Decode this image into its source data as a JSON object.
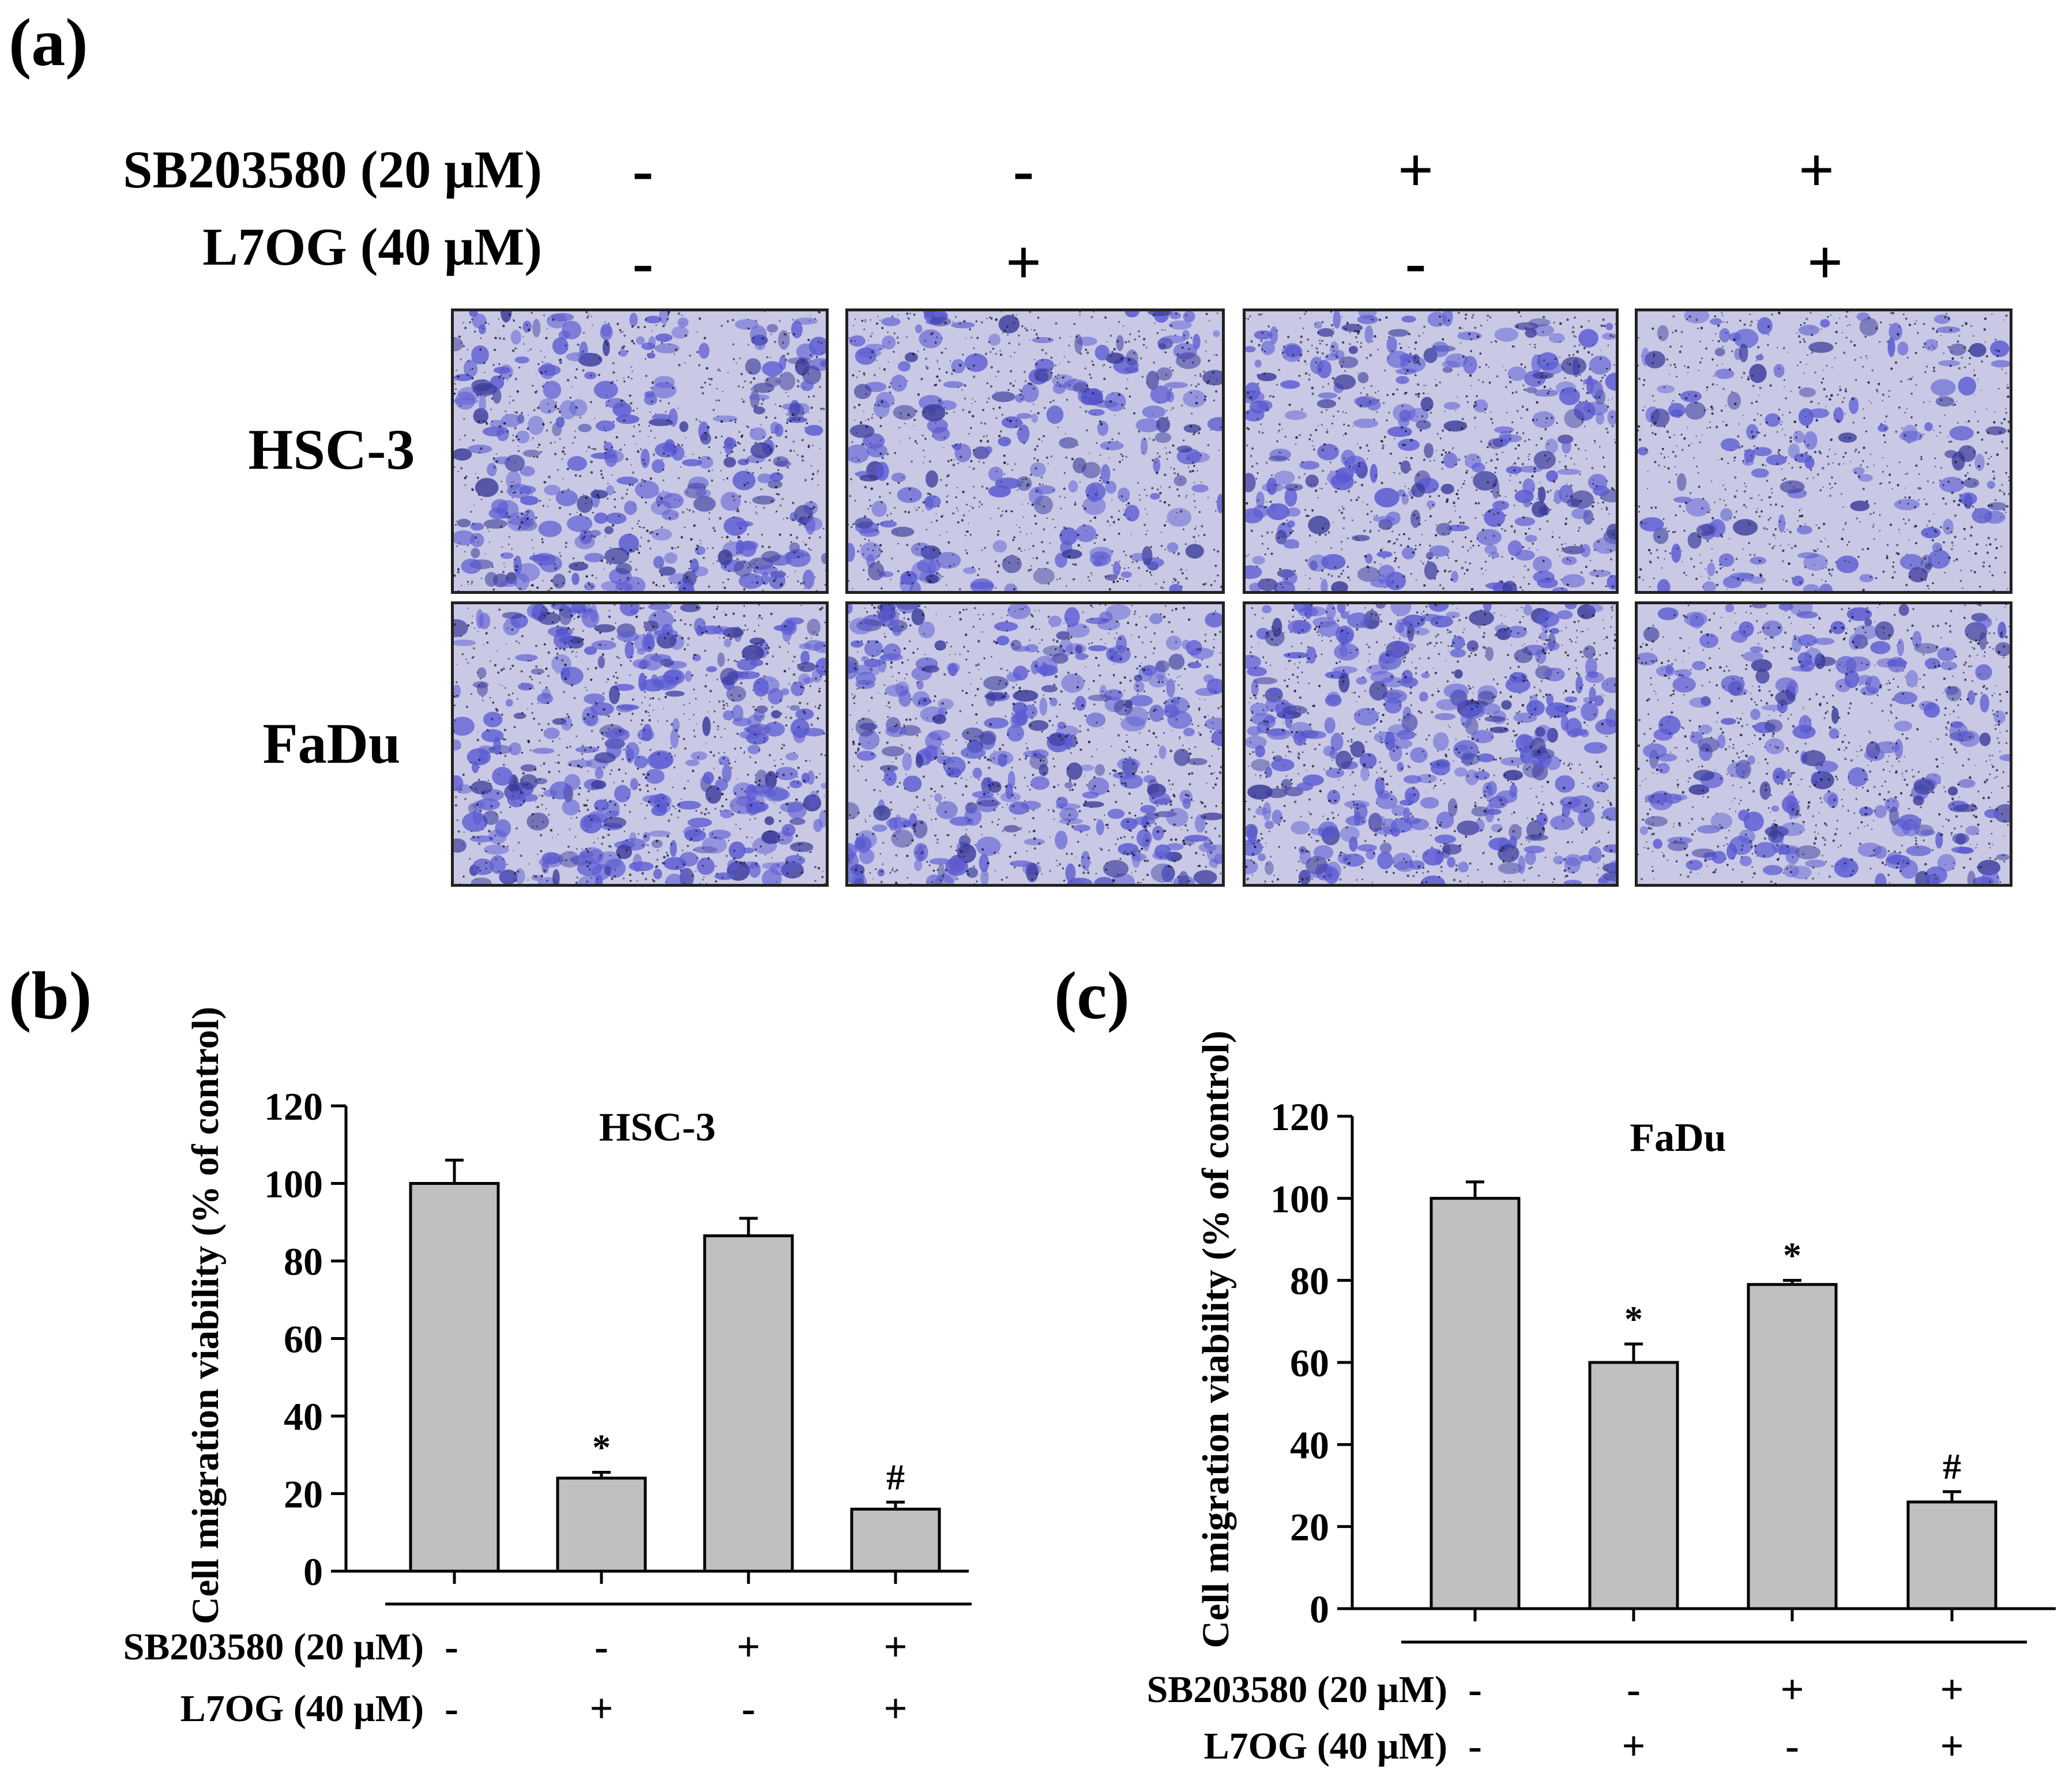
{
  "panel_a": {
    "label": "(a)",
    "conditions": [
      {
        "name": "SB203580 (20 μM)",
        "signs": [
          "-",
          "-",
          "+",
          "+"
        ]
      },
      {
        "name": "L7OG (40 μM)",
        "signs": [
          "-",
          "+",
          "-",
          "+"
        ]
      }
    ],
    "rows": [
      {
        "cell_line": "HSC-3",
        "densities": [
          0.62,
          0.45,
          0.55,
          0.3
        ]
      },
      {
        "cell_line": "FaDu",
        "densities": [
          0.8,
          0.72,
          0.78,
          0.52
        ]
      }
    ],
    "colors": {
      "stain": "#5a5ad2",
      "dark_stain": "#3a3a9a",
      "membrane": "#c9c9e6",
      "nuclei": "#1a1a3a"
    }
  },
  "chart_data": [
    {
      "panel": "(b)",
      "type": "bar",
      "title": "HSC-3",
      "ylabel": "Cell migration viability (% of control)",
      "ylim": [
        0,
        120
      ],
      "yticks": [
        0,
        20,
        40,
        60,
        80,
        100,
        120
      ],
      "series": [
        {
          "values": [
            100,
            24,
            86.5,
            16
          ],
          "errors": [
            6,
            1.5,
            4.5,
            1.8
          ]
        }
      ],
      "annotations": [
        "",
        "*",
        "",
        "#"
      ],
      "conditions": [
        {
          "name": "SB203580 (20 μM)",
          "signs": [
            "-",
            "-",
            "+",
            "+"
          ]
        },
        {
          "name": "L7OG (40 μM)",
          "signs": [
            "-",
            "+",
            "-",
            "+"
          ]
        }
      ],
      "bar_color": "#c0c0c0"
    },
    {
      "panel": "(c)",
      "type": "bar",
      "title": "FaDu",
      "ylabel": "Cell migration viability (% of control)",
      "ylim": [
        0,
        120
      ],
      "yticks": [
        0,
        20,
        40,
        60,
        80,
        100,
        120
      ],
      "series": [
        {
          "values": [
            100,
            60,
            79,
            26
          ],
          "errors": [
            4,
            4.5,
            1,
            2.5
          ]
        }
      ],
      "annotations": [
        "",
        "*",
        "*",
        "#"
      ],
      "conditions": [
        {
          "name": "SB203580 (20 μM)",
          "signs": [
            "-",
            "-",
            "+",
            "+"
          ]
        },
        {
          "name": "L7OG (40 μM)",
          "signs": [
            "-",
            "+",
            "-",
            "+"
          ]
        }
      ],
      "bar_color": "#c0c0c0"
    }
  ]
}
